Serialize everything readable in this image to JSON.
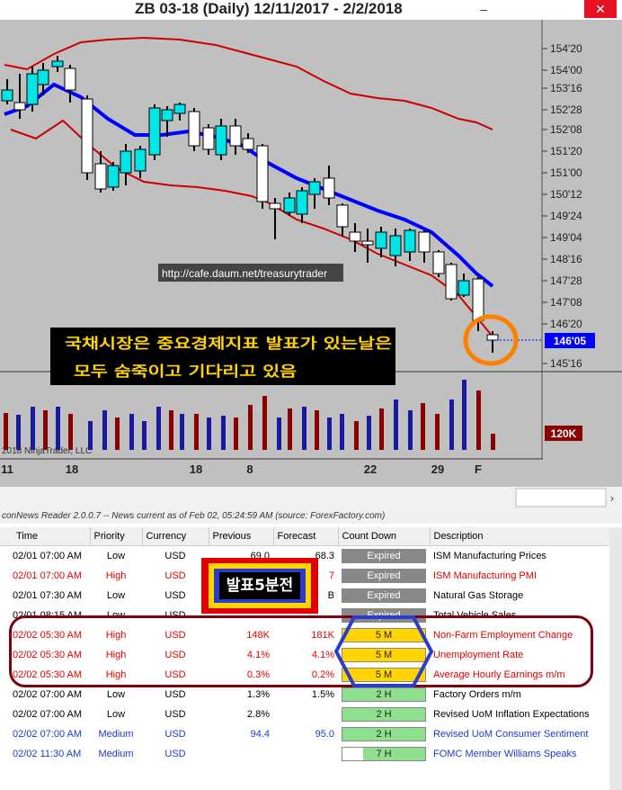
{
  "window": {
    "title": "ZB 03-18 (Daily)  12/11/2017 - 2/2/2018",
    "minimize_glyph": "–",
    "close_glyph": "✕"
  },
  "chart": {
    "price_labels": [
      "154'20",
      "154'00",
      "153'16",
      "152'28",
      "152'08",
      "151'20",
      "151'00",
      "150'12",
      "149'24",
      "149'04",
      "148'16",
      "147'28",
      "147'08",
      "146'20",
      "145'16"
    ],
    "current_price": "146'05",
    "volume_label": "120K",
    "watermark": "http://cafe.daum.net/treasurytrader",
    "annotation_line1": "국채시장은 중요경제지표 발표가 있는날은",
    "annotation_line2": "모두 숨죽이고 기다리고 있음",
    "copyright": "2018 NinjaTrader, LLC",
    "date_labels": [
      "11",
      "18",
      "18",
      "8",
      "22",
      "29",
      "F"
    ],
    "colors": {
      "bull": "#00e5e5",
      "bear": "#ffffff",
      "band": "#cc0000",
      "ma": "#0000ff",
      "vol_up": "#1a1aa0",
      "vol_down": "#8b0000",
      "bg": "#c0c0c0"
    }
  },
  "news": {
    "header": "conNews Reader 2.0.0.7  --  News current as of Feb 02, 05:24:59 AM  (source: ForexFactory.com)",
    "overlay_label": "발표5분전",
    "columns": [
      "Time",
      "Priority",
      "Currency",
      "Previous",
      "Forecast",
      "Count Down",
      "Description"
    ],
    "rows": [
      {
        "time": "02/01 07:00 AM",
        "priority": "Low",
        "currency": "USD",
        "previous": "69.0",
        "forecast": "68.3",
        "countdown": "Expired",
        "description": "ISM Manufacturing Prices",
        "style": "normal",
        "pill": "exp"
      },
      {
        "time": "02/01 07:00 AM",
        "priority": "High",
        "currency": "USD",
        "previous": "",
        "forecast": "7",
        "countdown": "Expired",
        "description": "ISM Manufacturing PMI",
        "style": "red",
        "pill": "exp"
      },
      {
        "time": "02/01 07:30 AM",
        "priority": "Low",
        "currency": "USD",
        "previous": "",
        "forecast": "B",
        "countdown": "Expired",
        "description": "Natural Gas Storage",
        "style": "normal",
        "pill": "exp"
      },
      {
        "time": "02/01 08:15 AM",
        "priority": "Low",
        "currency": "USD",
        "previous": "",
        "forecast": "",
        "countdown": "Expired",
        "description": "Total Vehicle Sales",
        "style": "normal",
        "pill": "exp"
      },
      {
        "time": "02/02 05:30 AM",
        "priority": "High",
        "currency": "USD",
        "previous": "148K",
        "forecast": "181K",
        "countdown": "5 M",
        "description": "Non-Farm Employment Change",
        "style": "red",
        "pill": "5m"
      },
      {
        "time": "02/02 05:30 AM",
        "priority": "High",
        "currency": "USD",
        "previous": "4.1%",
        "forecast": "4.1%",
        "countdown": "5 M",
        "description": "Unemployment Rate",
        "style": "red",
        "pill": "5m"
      },
      {
        "time": "02/02 05:30 AM",
        "priority": "High",
        "currency": "USD",
        "previous": "0.3%",
        "forecast": "0.2%",
        "countdown": "5 M",
        "description": "Average Hourly Earnings m/m",
        "style": "red",
        "pill": "5m"
      },
      {
        "time": "02/02 07:00 AM",
        "priority": "Low",
        "currency": "USD",
        "previous": "1.3%",
        "forecast": "1.5%",
        "countdown": "2 H",
        "description": "Factory Orders m/m",
        "style": "normal",
        "pill": "h"
      },
      {
        "time": "02/02 07:00 AM",
        "priority": "Low",
        "currency": "USD",
        "previous": "2.8%",
        "forecast": "",
        "countdown": "2 H",
        "description": "Revised UoM Inflation Expectations",
        "style": "normal",
        "pill": "h"
      },
      {
        "time": "02/02 07:00 AM",
        "priority": "Medium",
        "currency": "USD",
        "previous": "94.4",
        "forecast": "95.0",
        "countdown": "2 H",
        "description": "Revised UoM Consumer Sentiment",
        "style": "blue",
        "pill": "h"
      },
      {
        "time": "02/02 11:30 AM",
        "priority": "Medium",
        "currency": "USD",
        "previous": "",
        "forecast": "",
        "countdown": "7 H",
        "description": "FOMC Member Williams Speaks",
        "style": "blue",
        "pill": "7h"
      }
    ]
  }
}
